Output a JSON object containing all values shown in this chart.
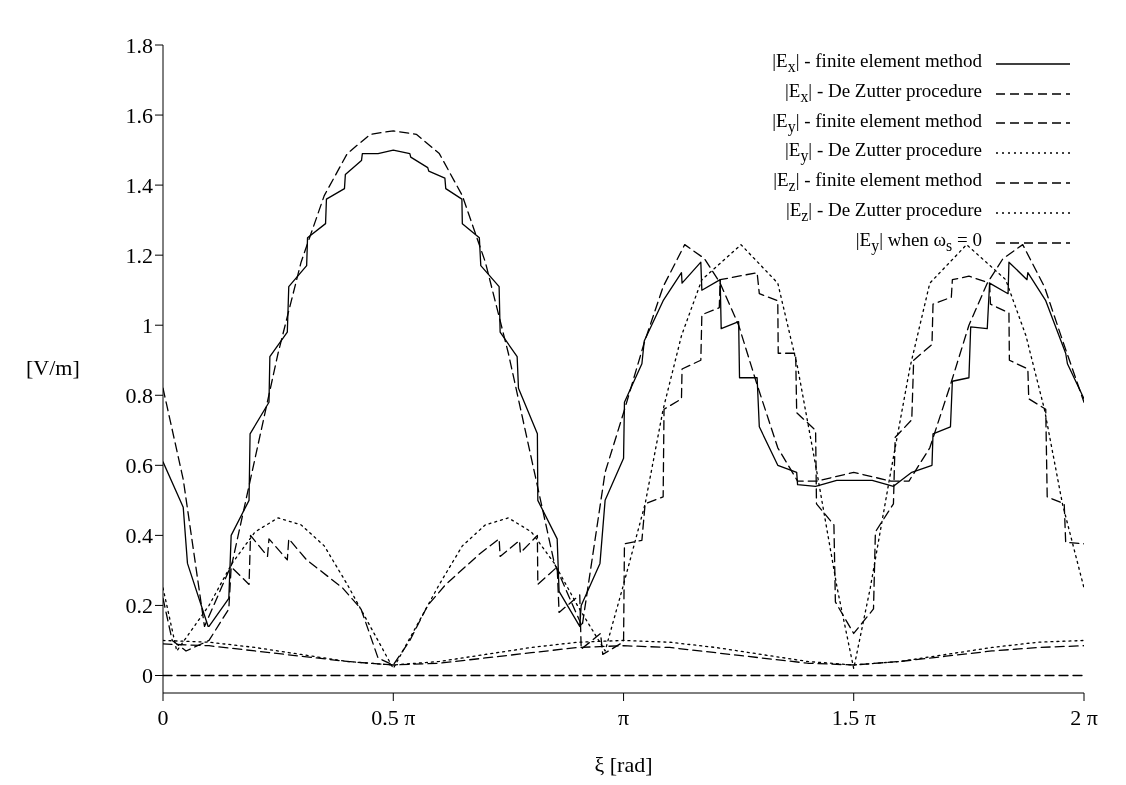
{
  "chart_data": {
    "type": "line",
    "xlabel": "ξ [rad]",
    "ylabel": "[V/m]",
    "xlim": [
      0,
      6.283
    ],
    "ylim": [
      -0.05,
      1.8
    ],
    "xticks": [
      {
        "value": 0,
        "label": "0"
      },
      {
        "value": 1.571,
        "label": "0.5 π"
      },
      {
        "value": 3.142,
        "label": "π"
      },
      {
        "value": 4.712,
        "label": "1.5 π"
      },
      {
        "value": 6.283,
        "label": "2 π"
      }
    ],
    "yticks": [
      0,
      0.2,
      0.4,
      0.6,
      0.8,
      1,
      1.2,
      1.4,
      1.6,
      1.8
    ],
    "legend": "top right",
    "marker": "none",
    "series": [
      {
        "name": "|E$_{x}$| - finite element method",
        "color": "#000000",
        "line_style": "solid",
        "x": [
          0,
          0.138,
          0.167,
          0.308,
          0.314,
          0.449,
          0.465,
          0.587,
          0.594,
          0.723,
          0.729,
          0.848,
          0.858,
          0.98,
          0.986,
          1.109,
          1.115,
          1.238,
          1.244,
          1.354,
          1.36,
          1.467,
          1.571,
          1.684,
          1.69,
          1.806,
          1.813,
          1.923,
          1.929,
          2.039,
          2.042,
          2.158,
          2.168,
          2.293,
          2.3,
          2.416,
          2.425,
          2.554,
          2.557,
          2.689,
          2.702,
          2.843,
          2.853,
          2.981,
          3.016,
          3.142,
          3.148,
          3.267,
          3.283,
          3.412,
          3.537,
          3.541,
          3.669,
          3.676,
          3.801,
          3.808,
          3.927,
          3.933,
          4.053,
          4.068,
          4.194,
          4.323,
          4.329,
          4.452,
          4.596,
          4.838,
          4.983,
          5.108,
          5.246,
          5.253,
          5.372,
          5.385,
          5.498,
          5.51,
          5.623,
          5.639,
          5.765,
          5.771,
          5.894,
          5.9,
          6.022,
          6.158,
          6.17,
          6.283
        ],
        "values": [
          0.61,
          0.48,
          0.32,
          0.14,
          0.14,
          0.22,
          0.4,
          0.5,
          0.69,
          0.78,
          0.91,
          0.98,
          1.11,
          1.17,
          1.25,
          1.29,
          1.36,
          1.39,
          1.43,
          1.47,
          1.49,
          1.49,
          1.5,
          1.49,
          1.48,
          1.45,
          1.44,
          1.42,
          1.39,
          1.36,
          1.29,
          1.25,
          1.17,
          1.11,
          0.98,
          0.91,
          0.82,
          0.69,
          0.5,
          0.39,
          0.24,
          0.14,
          0.2,
          0.32,
          0.5,
          0.62,
          0.78,
          0.89,
          0.955,
          1.07,
          1.15,
          1.12,
          1.18,
          1.1,
          1.13,
          0.99,
          1.01,
          0.85,
          0.85,
          0.71,
          0.6,
          0.58,
          0.545,
          0.54,
          0.557,
          0.557,
          0.54,
          0.58,
          0.6,
          0.69,
          0.71,
          0.84,
          0.85,
          0.995,
          0.99,
          1.12,
          1.09,
          1.18,
          1.13,
          1.15,
          1.07,
          0.92,
          0.89,
          0.79
        ]
      },
      {
        "name": "|E$_{x}$| - De Zutter procedure",
        "color": "#000000",
        "line_style": "dashed",
        "x": [
          0,
          0.138,
          0.283,
          0.471,
          0.628,
          0.785,
          0.942,
          1.1,
          1.257,
          1.414,
          1.571,
          1.728,
          1.885,
          2.042,
          2.199,
          2.356,
          2.513,
          2.67,
          2.859,
          3.016,
          3.142,
          3.283,
          3.412,
          3.559,
          3.694,
          3.801,
          3.927,
          4.053,
          4.194,
          4.329,
          4.461,
          4.712,
          4.964,
          5.089,
          5.231,
          5.372,
          5.498,
          5.623,
          5.73,
          5.865,
          6.013,
          6.142,
          6.283
        ],
        "values": [
          0.82,
          0.56,
          0.14,
          0.32,
          0.62,
          0.92,
          1.18,
          1.37,
          1.49,
          1.545,
          1.555,
          1.545,
          1.49,
          1.37,
          1.18,
          0.92,
          0.62,
          0.32,
          0.14,
          0.58,
          0.75,
          0.95,
          1.11,
          1.23,
          1.19,
          1.12,
          1,
          0.83,
          0.65,
          0.555,
          0.555,
          0.58,
          0.555,
          0.555,
          0.65,
          0.83,
          1,
          1.12,
          1.19,
          1.23,
          1.11,
          0.95,
          0.78
        ]
      },
      {
        "name": "|E$_{y}$| - finite element method",
        "color": "#000000",
        "line_style": "dashed",
        "x": [
          0,
          0.314,
          0.628,
          0.942,
          1.257,
          1.571,
          1.885,
          2.199,
          2.513,
          2.827,
          3.142,
          3.456,
          3.77,
          4.084,
          4.398,
          4.712,
          5.027,
          5.341,
          5.655,
          5.969,
          6.283
        ],
        "values": [
          0.09,
          0.085,
          0.07,
          0.055,
          0.04,
          0.03,
          0.035,
          0.05,
          0.065,
          0.08,
          0.085,
          0.08,
          0.065,
          0.05,
          0.035,
          0.03,
          0.04,
          0.055,
          0.07,
          0.08,
          0.085
        ]
      },
      {
        "name": "|E$_{y}$| - De Zutter procedure",
        "color": "#000000",
        "line_style": "dotted",
        "x": [
          0,
          0.314,
          0.628,
          0.942,
          1.257,
          1.571,
          1.885,
          2.199,
          2.513,
          2.827,
          3.142,
          3.456,
          3.77,
          4.084,
          4.398,
          4.712,
          5.027,
          5.341,
          5.655,
          5.969,
          6.283
        ],
        "values": [
          0.1,
          0.095,
          0.08,
          0.06,
          0.04,
          0.03,
          0.04,
          0.06,
          0.08,
          0.095,
          0.1,
          0.095,
          0.08,
          0.06,
          0.04,
          0.03,
          0.04,
          0.06,
          0.08,
          0.095,
          0.1
        ]
      },
      {
        "name": "|E$_{z}$| - finite element method",
        "color": "#000000",
        "line_style": "dashed",
        "x": [
          0,
          0.063,
          0.157,
          0.314,
          0.449,
          0.465,
          0.587,
          0.597,
          0.713,
          0.723,
          0.848,
          0.858,
          0.98,
          1.225,
          1.351,
          1.467,
          1.571,
          1.684,
          1.806,
          1.929,
          2.168,
          2.293,
          2.3,
          2.432,
          2.438,
          2.554,
          2.557,
          2.689,
          2.702,
          2.843,
          2.853,
          2.985,
          3,
          3.142,
          3.148,
          3.267,
          3.289,
          3.412,
          3.418,
          3.537,
          3.541,
          3.669,
          3.676,
          3.795,
          3.801,
          3.927,
          4.053,
          4.068,
          4.194,
          4.197,
          4.316,
          4.323,
          4.452,
          4.458,
          4.577,
          4.587,
          4.712,
          4.847,
          4.86,
          4.983,
          4.995,
          5.108,
          5.121,
          5.246,
          5.253,
          5.378,
          5.385,
          5.498,
          5.639,
          5.645,
          5.771,
          5.774,
          5.9,
          5.906,
          6.022,
          6.032,
          6.148,
          6.158,
          6.283
        ],
        "values": [
          0.22,
          0.1,
          0.07,
          0.1,
          0.19,
          0.31,
          0.26,
          0.4,
          0.34,
          0.39,
          0.33,
          0.39,
          0.33,
          0.25,
          0.19,
          0.05,
          0.03,
          0.1,
          0.2,
          0.26,
          0.35,
          0.39,
          0.34,
          0.385,
          0.35,
          0.4,
          0.26,
          0.31,
          0.18,
          0.23,
          0.075,
          0.12,
          0.06,
          0.096,
          0.376,
          0.386,
          0.49,
          0.51,
          0.76,
          0.79,
          0.875,
          0.9,
          1.03,
          1.05,
          1.13,
          1.14,
          1.15,
          1.09,
          1.07,
          0.92,
          0.92,
          0.75,
          0.7,
          0.49,
          0.43,
          0.21,
          0.12,
          0.19,
          0.41,
          0.49,
          0.68,
          0.73,
          0.9,
          0.945,
          1.06,
          1.08,
          1.13,
          1.14,
          1.12,
          1.06,
          1.035,
          0.9,
          0.875,
          0.79,
          0.76,
          0.51,
          0.49,
          0.38,
          0.376
        ]
      },
      {
        "name": "|E$_{z}$| - De Zutter procedure",
        "color": "#000000",
        "line_style": "dotted",
        "x": [
          0,
          0.094,
          0.314,
          0.471,
          0.628,
          0.785,
          0.942,
          1.1,
          1.257,
          1.414,
          1.571,
          1.728,
          1.885,
          2.042,
          2.199,
          2.356,
          2.513,
          2.67,
          2.827,
          3.016,
          3.142,
          3.289,
          3.412,
          3.537,
          3.676,
          3.943,
          4.194,
          4.329,
          4.461,
          4.599,
          4.712,
          4.825,
          4.964,
          5.096,
          5.231,
          5.482,
          5.749,
          5.887,
          6.013,
          6.136,
          6.283
        ],
        "values": [
          0.25,
          0.07,
          0.2,
          0.32,
          0.41,
          0.45,
          0.43,
          0.37,
          0.26,
          0.14,
          0.02,
          0.14,
          0.26,
          0.37,
          0.43,
          0.45,
          0.41,
          0.32,
          0.2,
          0.07,
          0.26,
          0.49,
          0.76,
          0.97,
          1.13,
          1.23,
          1.12,
          0.88,
          0.58,
          0.25,
          0.02,
          0.25,
          0.58,
          0.88,
          1.12,
          1.23,
          1.13,
          0.97,
          0.76,
          0.49,
          0.25
        ]
      },
      {
        "name": "|E$_{y}$| when ω$_{s}$ = 0",
        "color": "#000000",
        "line_style": "dashed",
        "x": [
          0,
          6.283
        ],
        "values": [
          0,
          0
        ]
      }
    ]
  }
}
